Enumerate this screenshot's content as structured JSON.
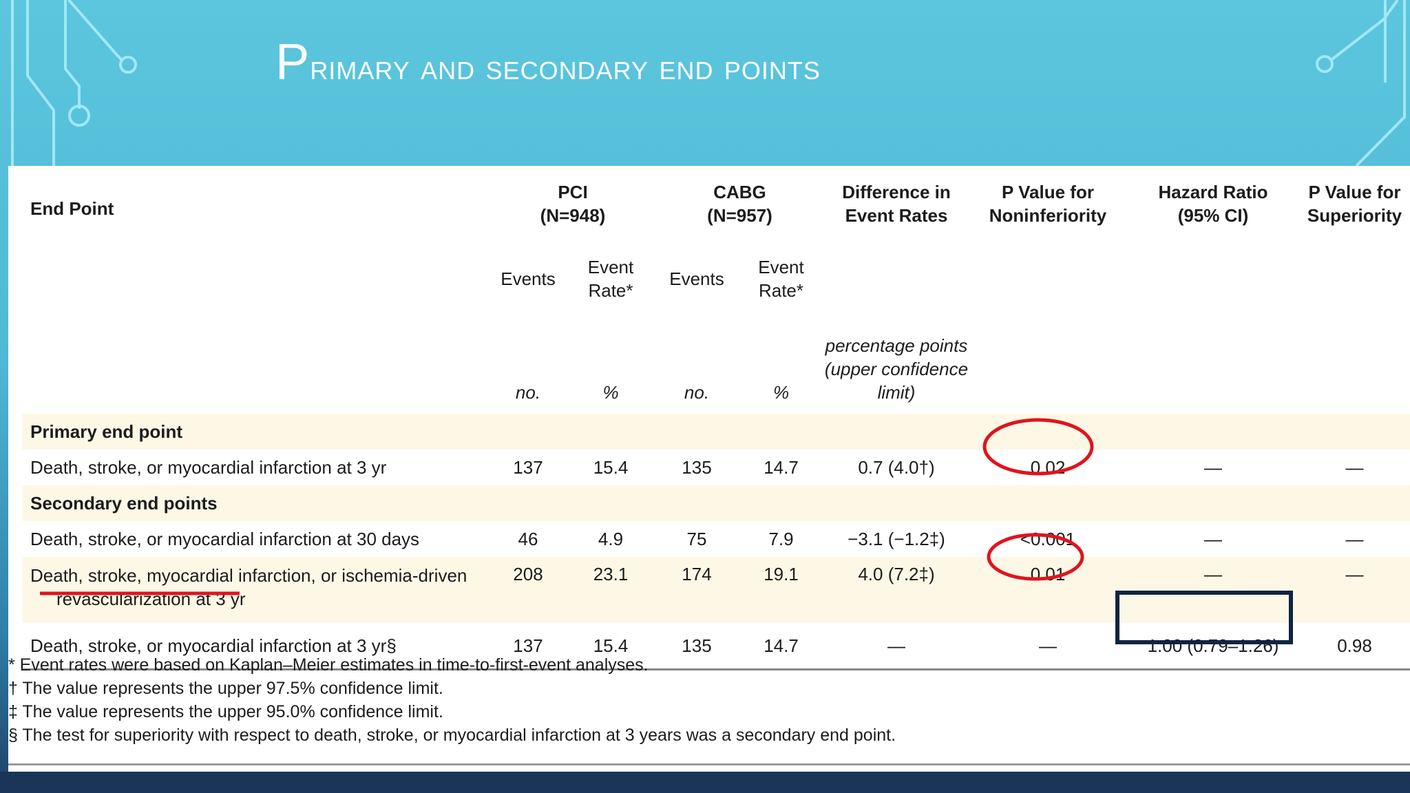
{
  "slide": {
    "title_first": "P",
    "title_rest": "rimary and secondary end points"
  },
  "table": {
    "header": {
      "end_point": "End Point",
      "pci": "PCI",
      "pci_n": "(N=948)",
      "cabg": "CABG",
      "cabg_n": "(N=957)",
      "diff_1": "Difference in",
      "diff_2": "Event Rates",
      "pni_1": "P Value for",
      "pni_2": "Noninferiority",
      "hr_1": "Hazard Ratio",
      "hr_2": "(95% CI)",
      "psup_1": "P Value for",
      "psup_2": "Superiority"
    },
    "subheader": {
      "events": "Events",
      "event_rate_1": "Event",
      "event_rate_2": "Rate*"
    },
    "units": {
      "no": "no.",
      "pct": "%",
      "diff_1": "percentage points",
      "diff_2": "(upper confidence",
      "diff_3": "limit)"
    },
    "sections": {
      "primary": "Primary end point",
      "secondary": "Secondary end points"
    },
    "rows": [
      {
        "label": "Death, stroke, or myocardial infarction at 3 yr",
        "pci_events": "137",
        "pci_rate": "15.4",
        "cabg_events": "135",
        "cabg_rate": "14.7",
        "diff": "0.7 (4.0†)",
        "p_noninf": "0.02",
        "hr": "—",
        "p_sup": "—"
      },
      {
        "label": "Death, stroke, or myocardial infarction at 30 days",
        "pci_events": "46",
        "pci_rate": "4.9",
        "cabg_events": "75",
        "cabg_rate": "7.9",
        "diff": "−3.1 (−1.2‡)",
        "p_noninf": "<0.001",
        "hr": "—",
        "p_sup": "—"
      },
      {
        "label": "Death, stroke, myocardial infarction, or ischemia-driven",
        "label_2": "revascularization at 3 yr",
        "pci_events": "208",
        "pci_rate": "23.1",
        "cabg_events": "174",
        "cabg_rate": "19.1",
        "diff": "4.0 (7.2‡)",
        "p_noninf": "0.01",
        "hr": "—",
        "p_sup": "—"
      },
      {
        "label": "Death, stroke, or myocardial infarction at 3 yr§",
        "pci_events": "137",
        "pci_rate": "15.4",
        "cabg_events": "135",
        "cabg_rate": "14.7",
        "diff": "—",
        "p_noninf": "—",
        "hr": "1.00 (0.79–1.26)",
        "p_sup": "0.98"
      }
    ]
  },
  "footnotes": [
    "* Event rates were based on Kaplan–Meier estimates in time-to-first-event analyses.",
    "† The value represents the upper 97.5% confidence limit.",
    "‡ The value represents the upper 95.0% confidence limit.",
    "§ The test for superiority with respect to death, stroke, or myocardial infarction at 3 years was a secondary end point."
  ],
  "colors": {
    "annotation_red": "#e0141e",
    "annotation_navy": "#0f2440"
  }
}
